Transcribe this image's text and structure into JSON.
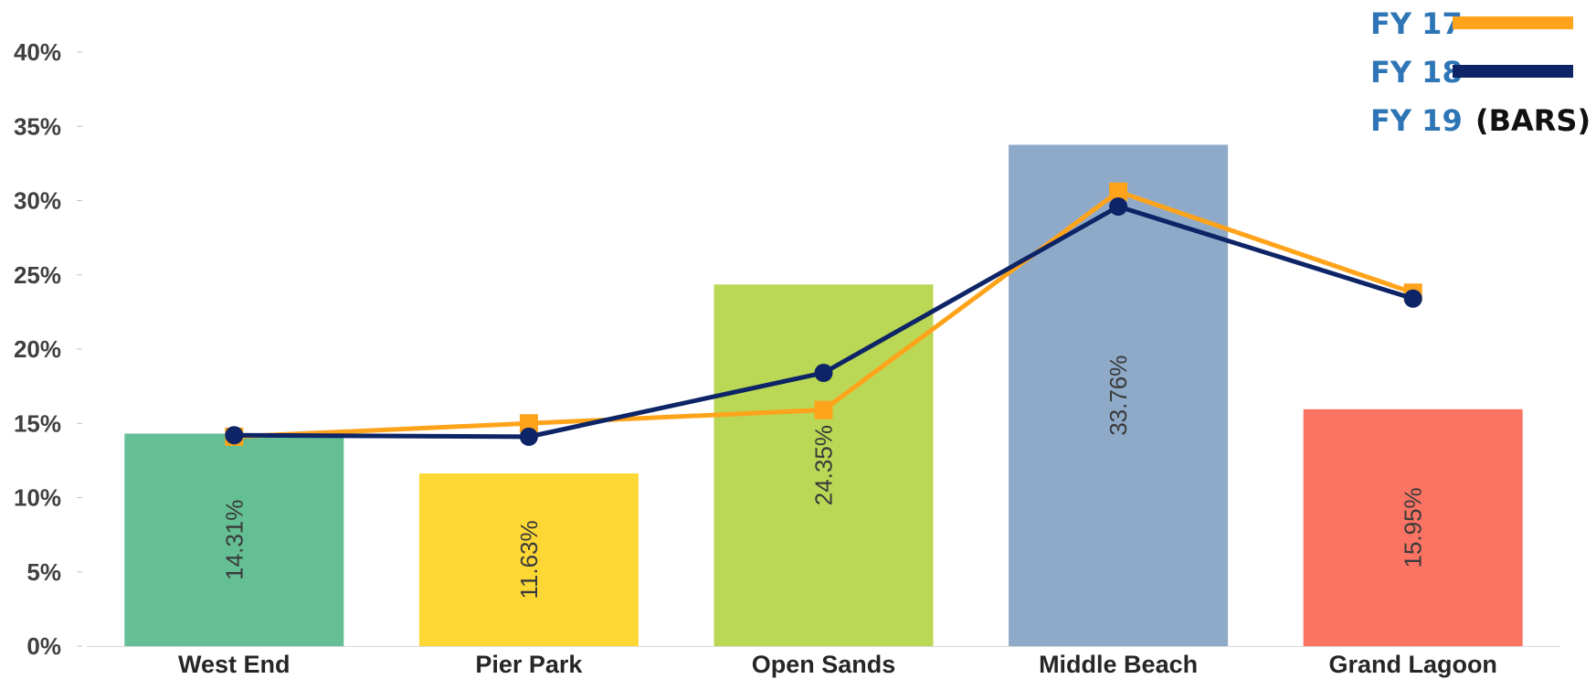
{
  "chart_data": {
    "type": "bar",
    "categories": [
      "West End",
      "Pier Park",
      "Open Sands",
      "Middle Beach",
      "Grand Lagoon"
    ],
    "series": [
      {
        "name": "FY 19",
        "legend_suffix": "(BARS)",
        "kind": "bar",
        "values": [
          14.31,
          11.63,
          24.35,
          33.76,
          15.95
        ],
        "value_labels": [
          "14.31%",
          "11.63%",
          "24.35%",
          "33.76%",
          "15.95%"
        ],
        "colors": [
          "#64bf94",
          "#fdd835",
          "#bad755",
          "#8faac8",
          "#fb7463"
        ]
      },
      {
        "name": "FY 17",
        "kind": "line",
        "marker": "square",
        "color": "#ffa31a",
        "values": [
          14.1,
          15.0,
          15.9,
          30.6,
          23.8
        ]
      },
      {
        "name": "FY 18",
        "kind": "line",
        "marker": "circle",
        "color": "#0d2466",
        "values": [
          14.2,
          14.1,
          18.4,
          29.6,
          23.4
        ]
      }
    ],
    "y_ticks": [
      "0%",
      "5%",
      "10%",
      "15%",
      "20%",
      "25%",
      "30%",
      "35%",
      "40%"
    ],
    "ylim": [
      0,
      40
    ],
    "legend_position": "top-right",
    "legend_text_color": "#2e75b6",
    "legend_suffix_color": "#111111",
    "grid": false
  }
}
